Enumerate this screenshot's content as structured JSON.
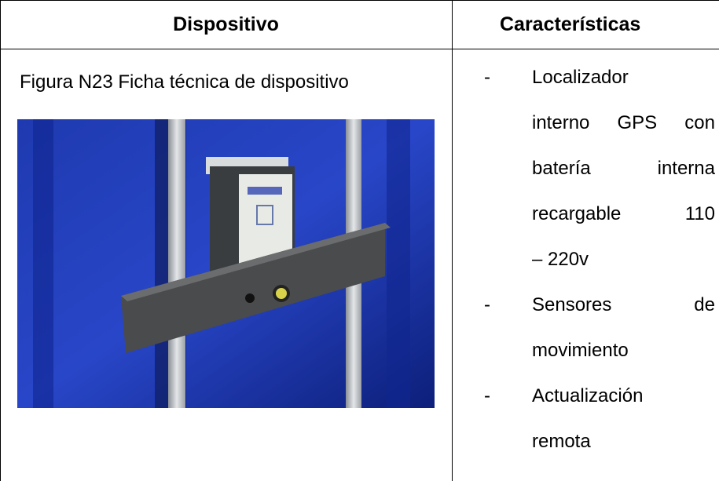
{
  "header": {
    "col1": "Dispositivo",
    "col2": "Características"
  },
  "caption": "Figura N23 Ficha técnica de dispositivo",
  "bullet": "-",
  "features": [
    [
      "Localizador",
      "interno GPS con",
      "batería interna",
      "recargable 110",
      "– 220v"
    ],
    [
      "Sensores de",
      "movimiento"
    ],
    [
      "Actualización",
      "remota"
    ]
  ]
}
